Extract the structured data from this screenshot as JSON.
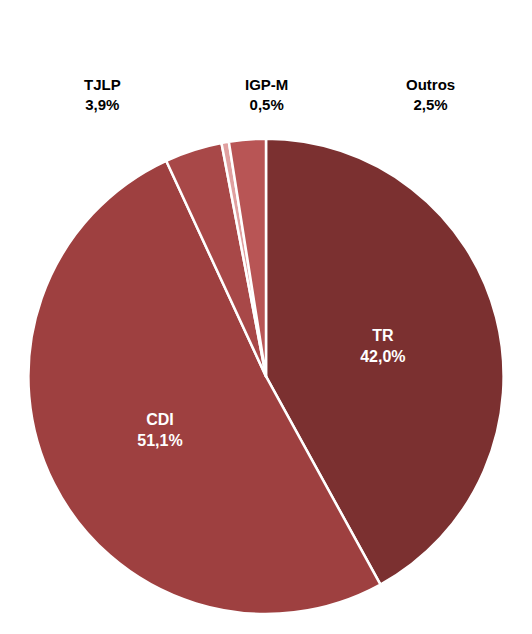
{
  "chart_data": {
    "type": "pie",
    "categories": [
      "TR",
      "CDI",
      "TJLP",
      "IGP-M",
      "Outros"
    ],
    "values": [
      42.0,
      51.1,
      3.9,
      0.5,
      2.5
    ],
    "value_labels": [
      "42,0%",
      "51,1%",
      "3,9%",
      "0,5%",
      "2,5%"
    ],
    "colors": [
      "#7B3030",
      "#9E4040",
      "#A84848",
      "#E0A0A0",
      "#B85555"
    ],
    "data_labels": true
  }
}
